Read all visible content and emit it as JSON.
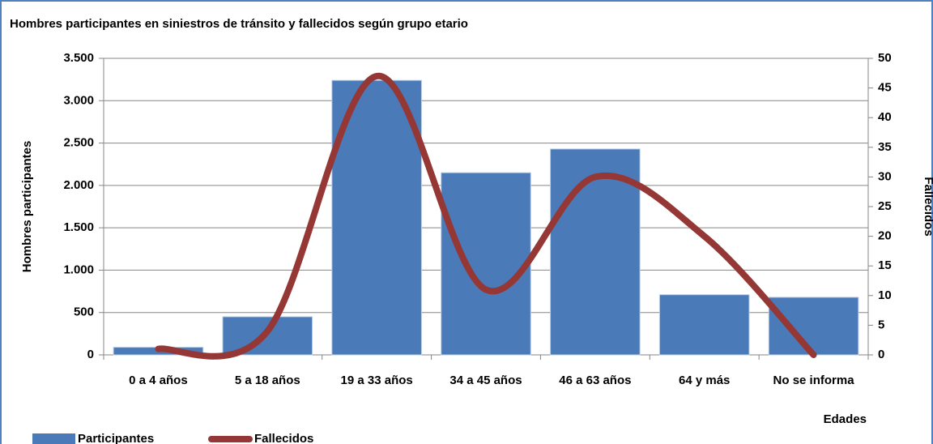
{
  "chart_data": {
    "type": "bar_line",
    "title": "Hombres participantes  en siniestros de tránsito y fallecidos según grupo etario",
    "x_label": "Edades",
    "y_label": "Hombres participantes",
    "y2_label": "Fallecidos",
    "categories": [
      "0 a 4 años",
      "5 a 18 años",
      "19 a 33 años",
      "34 a 45 años",
      "46 a 63 años",
      "64 y más",
      "No se informa"
    ],
    "series": [
      {
        "name": "Participantes",
        "type": "bar",
        "color": "#4a7ab8",
        "values": [
          90,
          450,
          3240,
          2150,
          2430,
          710,
          680
        ]
      },
      {
        "name": "Fallecidos",
        "type": "line",
        "axis": "y2",
        "smooth": true,
        "color": "#953735",
        "values": [
          1,
          4,
          47,
          11,
          30,
          20,
          0
        ]
      }
    ],
    "ylim": [
      0,
      3500
    ],
    "yticks": [
      0,
      500,
      {
        "value": 1000,
        "label": "1.000"
      },
      {
        "value": 1500,
        "label": "1.500"
      },
      {
        "value": 2000,
        "label": "2.000"
      },
      {
        "value": 2500,
        "label": "2.500"
      },
      {
        "value": 3000,
        "label": "3.000"
      },
      {
        "value": 3500,
        "label": "3.500"
      }
    ],
    "y2lim": [
      0,
      50
    ],
    "y2ticks": [
      0,
      5,
      10,
      15,
      20,
      25,
      30,
      35,
      40,
      45,
      50
    ],
    "grid": true,
    "legend": "bottom"
  }
}
